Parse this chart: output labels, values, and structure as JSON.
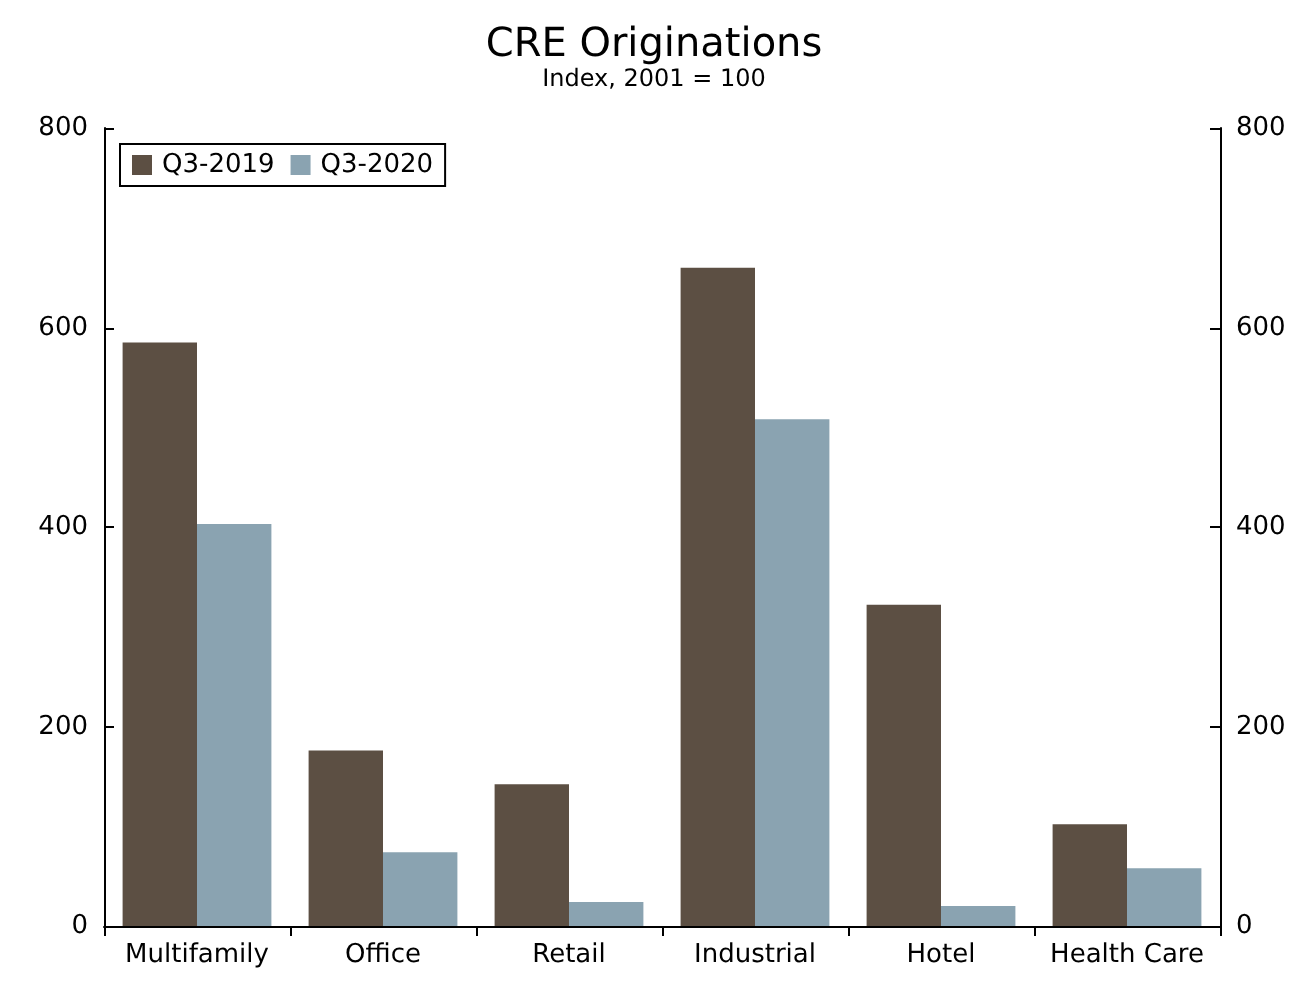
{
  "chart_data": {
    "type": "bar",
    "title": "CRE Originations",
    "subtitle": "Index, 2001 = 100",
    "categories": [
      "Multifamily",
      "Office",
      "Retail",
      "Industrial",
      "Hotel",
      "Health Care"
    ],
    "series": [
      {
        "name": "Q3-2019",
        "color": "#5c4f43",
        "values": [
          585,
          176,
          142,
          660,
          322,
          102
        ]
      },
      {
        "name": "Q3-2020",
        "color": "#8aa3b1",
        "values": [
          403,
          74,
          24,
          508,
          20,
          58
        ]
      }
    ],
    "ylim": [
      0,
      800
    ],
    "yticks": [
      0,
      200,
      400,
      600,
      800
    ],
    "y2lim": [
      0,
      800
    ],
    "y2ticks": [
      0,
      200,
      400,
      600,
      800
    ],
    "grid": false,
    "legend": "top left"
  }
}
